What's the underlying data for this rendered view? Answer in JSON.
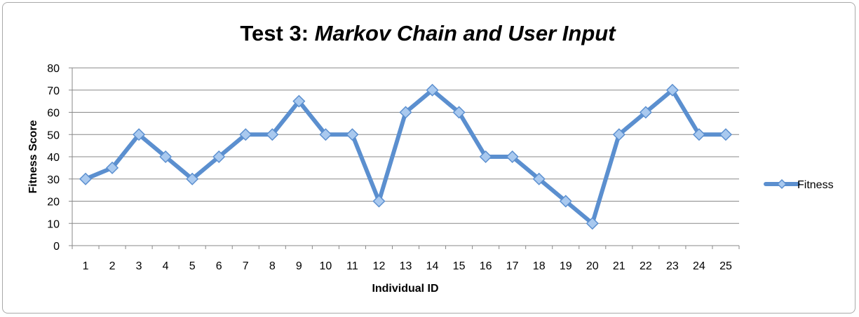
{
  "chart_data": {
    "type": "line",
    "title_prefix": "Test 3: ",
    "title_italic": "Markov Chain and User Input",
    "xlabel": "Individual ID",
    "ylabel": "Fitness Score",
    "categories": [
      "1",
      "2",
      "3",
      "4",
      "5",
      "6",
      "7",
      "8",
      "9",
      "10",
      "11",
      "12",
      "13",
      "14",
      "15",
      "16",
      "17",
      "18",
      "19",
      "20",
      "21",
      "22",
      "23",
      "24",
      "25"
    ],
    "series": [
      {
        "name": "Fitness",
        "values": [
          30,
          35,
          50,
          40,
          30,
          40,
          50,
          50,
          65,
          50,
          50,
          20,
          60,
          70,
          60,
          40,
          40,
          30,
          20,
          10,
          50,
          60,
          70,
          50,
          50
        ]
      }
    ],
    "ylim": [
      0,
      80
    ],
    "yticks": [
      "0",
      "10",
      "20",
      "30",
      "40",
      "50",
      "60",
      "70",
      "80"
    ],
    "grid": true,
    "legend_position": "right",
    "colors": {
      "line": "#5b8fcf",
      "marker": "#a9c9ef",
      "marker_stroke": "#5b8fcf",
      "grid": "#888888"
    }
  }
}
